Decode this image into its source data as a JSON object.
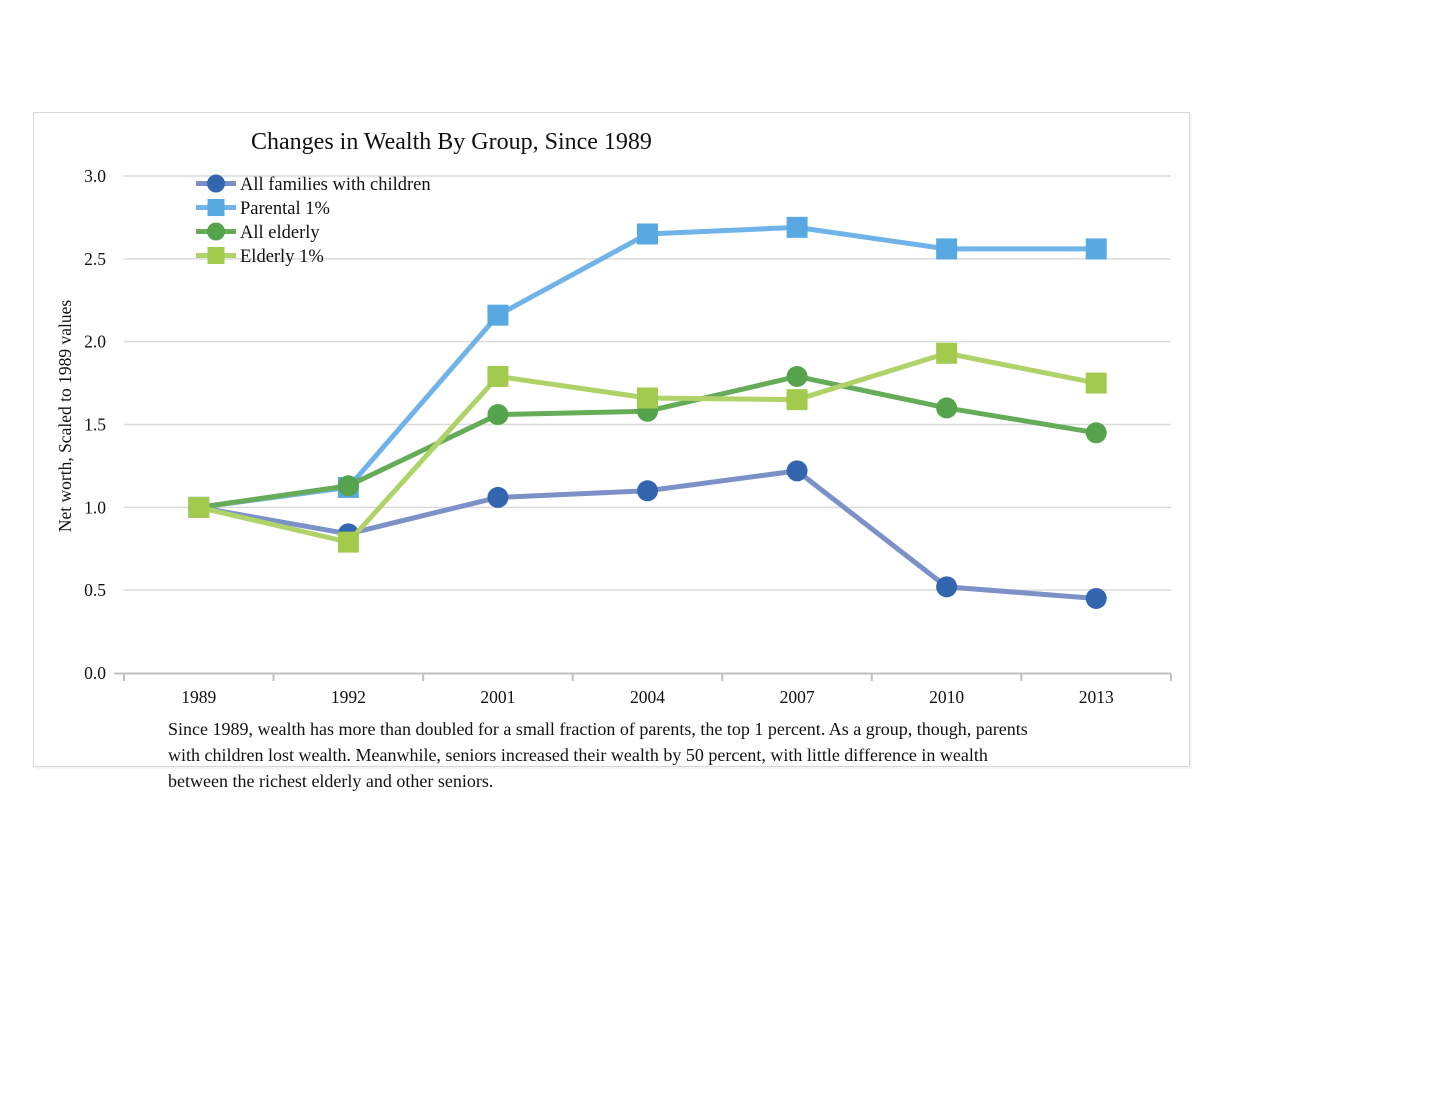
{
  "chart": {
    "caption": "Since 1989, wealth has more than doubled for a small fraction of parents, the top 1 percent. As a group, though, parents with children lost wealth. Meanwhile, seniors increased their wealth by 50 percent, with little difference in wealth between the richest elderly and other seniors."
  },
  "chart_data": {
    "type": "line",
    "title": "Changes in Wealth By Group, Since 1989",
    "xlabel": "",
    "ylabel": "Net worth, Scaled to 1989 values",
    "categories": [
      "1989",
      "1992",
      "2001",
      "2004",
      "2007",
      "2010",
      "2013"
    ],
    "series": [
      {
        "name": "All families with children",
        "marker": "circle",
        "line_color": "#7B91C8",
        "marker_color": "#3366AF",
        "values": [
          1.0,
          0.84,
          1.06,
          1.1,
          1.22,
          0.52,
          0.45
        ]
      },
      {
        "name": "Parental 1%",
        "marker": "square",
        "line_color": "#6FB3E9",
        "marker_color": "#58A8E1",
        "values": [
          1.0,
          1.12,
          2.16,
          2.65,
          2.69,
          2.56,
          2.56
        ]
      },
      {
        "name": "All elderly",
        "marker": "circle",
        "line_color": "#66AC58",
        "marker_color": "#55A34C",
        "values": [
          1.0,
          1.13,
          1.56,
          1.58,
          1.79,
          1.6,
          1.45
        ]
      },
      {
        "name": "Elderly 1%",
        "marker": "square",
        "line_color": "#AFD269",
        "marker_color": "#A2CB4E",
        "values": [
          1.0,
          0.79,
          1.79,
          1.66,
          1.65,
          1.93,
          1.75
        ]
      }
    ],
    "ylim": [
      0.0,
      3.0
    ],
    "yticks": [
      0.0,
      0.5,
      1.0,
      1.5,
      2.0,
      2.5,
      3.0
    ],
    "ytick_labels": [
      "0.0",
      "0.5",
      "1.0",
      "1.5",
      "2.0",
      "2.5",
      "3.0"
    ],
    "grid": "horizontal",
    "legend_position": "top-left-inside",
    "colors": {
      "grid": "#DBDBDB",
      "axis": "#C0C0C0",
      "border": "#D6D6D6",
      "text": "#111111"
    }
  }
}
